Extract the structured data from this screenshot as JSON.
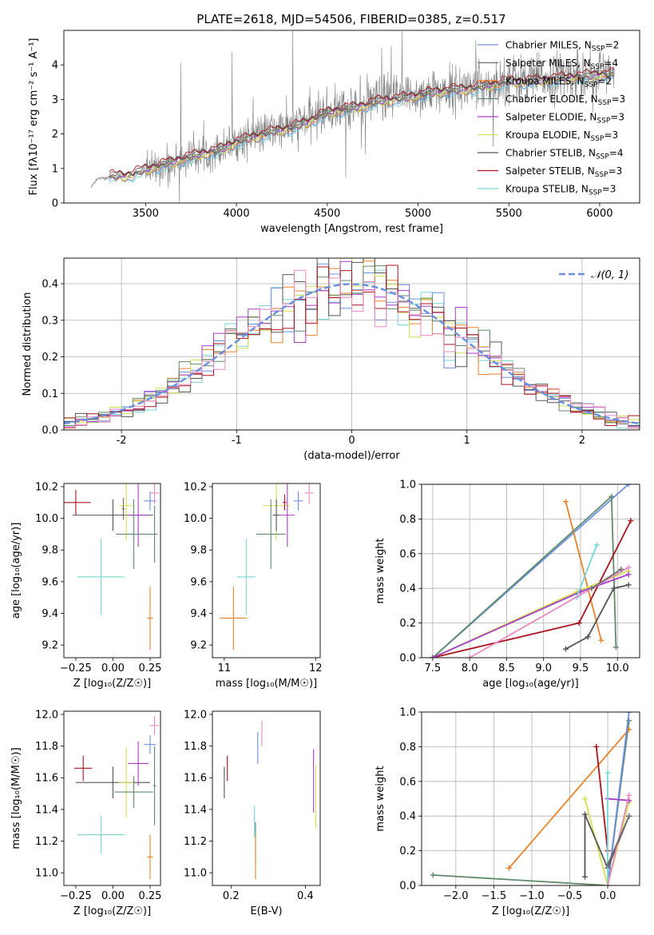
{
  "figure_title": "PLATE=2618, MJD=54506, FIBERID=0385, z=0.517",
  "colors": {
    "Chabrier MILES": "#6a8fe0",
    "Salpeter MILES": "#6e6e6e",
    "Kroupa MILES": "#e8822a",
    "Chabrier ELODIE": "#5f8a6a",
    "Salpeter ELODIE": "#a63ec7",
    "Kroupa ELODIE": "#d4df54",
    "Chabrier STELIB": "#555555",
    "Salpeter STELIB": "#a8141e",
    "Kroupa STELIB": "#78d5d7",
    "data": "#808080",
    "extra": "#e88bc2"
  },
  "chart_data": [
    {
      "id": "spectrum",
      "type": "line",
      "title": "PLATE=2618, MJD=54506, FIBERID=0385, z=0.517",
      "xlabel": "wavelength [Angstrom, rest frame]",
      "ylabel": "Flux [fλ10⁻¹⁷ erg cm⁻² s⁻¹ A⁻¹]",
      "xlim": [
        3050,
        6220
      ],
      "ylim": [
        0,
        5
      ],
      "xticks": [
        3500,
        4000,
        4500,
        5000,
        5500,
        6000
      ],
      "yticks": [
        0,
        1,
        2,
        3,
        4
      ],
      "legend_position": "top-right",
      "legend": [
        {
          "label": "Chabrier MILES, N",
          "sub": "SSP",
          "n": "=2",
          "color_key": "Chabrier MILES"
        },
        {
          "label": "Salpeter MILES, N",
          "sub": "SSP",
          "n": "=4",
          "color_key": "Salpeter MILES"
        },
        {
          "label": "Kroupa MILES, N",
          "sub": "SSP",
          "n": "=2",
          "color_key": "Kroupa MILES"
        },
        {
          "label": "Chabrier ELODIE, N",
          "sub": "SSP",
          "n": "=3",
          "color_key": "Chabrier ELODIE"
        },
        {
          "label": "Salpeter ELODIE, N",
          "sub": "SSP",
          "n": "=3",
          "color_key": "Salpeter ELODIE"
        },
        {
          "label": "Kroupa ELODIE, N",
          "sub": "SSP",
          "n": "=3",
          "color_key": "Kroupa ELODIE"
        },
        {
          "label": "Chabrier STELIB, N",
          "sub": "SSP",
          "n": "=4",
          "color_key": "Chabrier STELIB"
        },
        {
          "label": "Salpeter STELIB, N",
          "sub": "SSP",
          "n": "=3",
          "color_key": "Salpeter STELIB"
        },
        {
          "label": "Kroupa STELIB, N",
          "sub": "SSP",
          "n": "=3",
          "color_key": "Kroupa STELIB"
        }
      ],
      "data_continuum": [
        [
          3200,
          0.45
        ],
        [
          3230,
          0.7
        ],
        [
          3300,
          0.75
        ],
        [
          3400,
          0.78
        ],
        [
          3500,
          0.9
        ],
        [
          3600,
          1.1
        ],
        [
          3700,
          1.25
        ],
        [
          3800,
          1.4
        ],
        [
          3900,
          1.55
        ],
        [
          4000,
          1.8
        ],
        [
          4100,
          1.95
        ],
        [
          4200,
          2.1
        ],
        [
          4300,
          2.2
        ],
        [
          4400,
          2.45
        ],
        [
          4500,
          2.65
        ],
        [
          4600,
          2.75
        ],
        [
          4700,
          2.85
        ],
        [
          4800,
          3.05
        ],
        [
          4900,
          3.1
        ],
        [
          5000,
          3.15
        ],
        [
          5100,
          3.25
        ],
        [
          5200,
          3.3
        ],
        [
          5300,
          3.35
        ],
        [
          5400,
          3.45
        ],
        [
          5500,
          3.6
        ],
        [
          5600,
          3.55
        ],
        [
          5700,
          3.6
        ],
        [
          5800,
          3.7
        ],
        [
          5900,
          3.7
        ],
        [
          6000,
          3.75
        ],
        [
          6080,
          3.75
        ]
      ],
      "data_start": 3200,
      "noise_start": 3500,
      "data_end": 6080,
      "model_continuum": [
        [
          3300,
          0.75
        ],
        [
          3400,
          0.78
        ],
        [
          3500,
          0.95
        ],
        [
          3600,
          1.1
        ],
        [
          3700,
          1.25
        ],
        [
          3800,
          1.4
        ],
        [
          3900,
          1.5
        ],
        [
          4000,
          1.75
        ],
        [
          4100,
          1.9
        ],
        [
          4200,
          2.05
        ],
        [
          4300,
          2.15
        ],
        [
          4400,
          2.35
        ],
        [
          4500,
          2.6
        ],
        [
          4600,
          2.7
        ],
        [
          4700,
          2.8
        ],
        [
          4800,
          2.95
        ],
        [
          4900,
          3.0
        ],
        [
          5000,
          3.1
        ],
        [
          5100,
          3.2
        ],
        [
          5200,
          3.25
        ],
        [
          5300,
          3.3
        ],
        [
          5400,
          3.4
        ],
        [
          5500,
          3.5
        ],
        [
          5600,
          3.5
        ],
        [
          5700,
          3.55
        ],
        [
          5800,
          3.6
        ],
        [
          5900,
          3.65
        ],
        [
          6000,
          3.7
        ],
        [
          6080,
          3.7
        ]
      ]
    },
    {
      "id": "residuals",
      "type": "histogram",
      "xlabel": "(data-model)/error",
      "ylabel": "Normed distribution",
      "xlim": [
        -2.5,
        2.5
      ],
      "ylim": [
        0,
        0.47
      ],
      "xticks": [
        -2,
        -1,
        0,
        1,
        2
      ],
      "yticks": [
        0.0,
        0.1,
        0.2,
        0.3,
        0.4
      ],
      "grid": true,
      "legend_position": "top-right",
      "legend_label": "𝒩(0, 1)",
      "gaussian": {
        "mean": 0,
        "sigma": 1
      },
      "bin_width": 0.1
    },
    {
      "id": "age-vs-Z",
      "type": "errorbar",
      "xlabel": "Z [log₁₀(Z/Z☉)]",
      "ylabel": "age  [log₁₀(age/yr)]",
      "xlim": [
        -0.33,
        0.32
      ],
      "ylim": [
        9.12,
        10.22
      ],
      "xticks": [
        -0.25,
        0.0,
        0.25
      ],
      "xticklabels": [
        "−0.25",
        "0.00",
        "0.25"
      ],
      "yticks": [
        9.2,
        9.4,
        9.6,
        9.8,
        10.0,
        10.2
      ],
      "points": [
        {
          "c": "Salpeter STELIB",
          "x": -0.25,
          "xe": 0.1,
          "y": 10.1,
          "ye": 0.08
        },
        {
          "c": "Chabrier STELIB",
          "x": 0.0,
          "xe": 0.27,
          "y": 10.02,
          "ye": 0.1
        },
        {
          "c": "Kroupa STELIB",
          "x": -0.08,
          "xe": 0.16,
          "y": 9.63,
          "ye": 0.24
        },
        {
          "c": "Kroupa MILES",
          "x": 0.25,
          "xe": 0.02,
          "y": 9.37,
          "ye": 0.2
        },
        {
          "c": "Kroupa ELODIE",
          "x": 0.09,
          "xe": 0.05,
          "y": 10.08,
          "ye": 0.22
        },
        {
          "c": "Salpeter ELODIE",
          "x": 0.17,
          "xe": 0.07,
          "y": 10.02,
          "ye": 0.2
        },
        {
          "c": "Chabrier ELODIE",
          "x": 0.14,
          "xe": 0.12,
          "y": 9.9,
          "ye": 0.22
        },
        {
          "c": "Chabrier MILES",
          "x": 0.25,
          "xe": 0.04,
          "y": 10.11,
          "ye": 0.06
        },
        {
          "c": "extra",
          "x": 0.28,
          "xe": 0.03,
          "y": 10.16,
          "ye": 0.07
        },
        {
          "c": "Salpeter MILES",
          "x": 0.07,
          "xe": 0.01,
          "y": 10.06,
          "ye": 0.07
        },
        {
          "c": "Chabrier ELODIE",
          "x": 0.28,
          "xe": 0.02,
          "y": 9.9,
          "ye": 0.18
        }
      ]
    },
    {
      "id": "age-vs-mass",
      "type": "errorbar",
      "xlabel": "mass [log₁₀(M/M☉)]",
      "ylabel": "",
      "xlim": [
        10.87,
        12.05
      ],
      "ylim": [
        9.12,
        10.22
      ],
      "xticks": [
        11,
        12
      ],
      "xticklabels": [
        "11",
        "12"
      ],
      "yticks": [
        9.2,
        9.4,
        9.6,
        9.8,
        10.0,
        10.2
      ],
      "points": [
        {
          "c": "Kroupa MILES",
          "x": 11.1,
          "xe": 0.15,
          "y": 9.37,
          "ye": 0.2
        },
        {
          "c": "Kroupa STELIB",
          "x": 11.24,
          "xe": 0.1,
          "y": 9.63,
          "ye": 0.24
        },
        {
          "c": "Kroupa ELODIE",
          "x": 11.57,
          "xe": 0.15,
          "y": 10.08,
          "ye": 0.22
        },
        {
          "c": "Chabrier ELODIE",
          "x": 11.51,
          "xe": 0.16,
          "y": 9.9,
          "ye": 0.22
        },
        {
          "c": "Salpeter ELODIE",
          "x": 11.69,
          "xe": 0.08,
          "y": 10.02,
          "ye": 0.2
        },
        {
          "c": "Chabrier STELIB",
          "x": 11.57,
          "xe": 0.04,
          "y": 10.02,
          "ye": 0.1
        },
        {
          "c": "Chabrier MILES",
          "x": 11.81,
          "xe": 0.05,
          "y": 10.11,
          "ye": 0.06
        },
        {
          "c": "extra",
          "x": 11.93,
          "xe": 0.05,
          "y": 10.16,
          "ye": 0.07
        },
        {
          "c": "Salpeter STELIB",
          "x": 11.66,
          "xe": 0.02,
          "y": 10.1,
          "ye": 0.05
        }
      ]
    },
    {
      "id": "massweight-vs-age",
      "type": "line",
      "xlabel": "age  [log₁₀(age/yr)]",
      "ylabel": "mass weight",
      "xlim": [
        7.35,
        10.3
      ],
      "ylim": [
        0,
        1
      ],
      "xticks": [
        7.5,
        8.0,
        8.5,
        9.0,
        9.5,
        10.0
      ],
      "xticklabels": [
        "7.5",
        "8.0",
        "8.5",
        "9.0",
        "9.5",
        "10.0"
      ],
      "yticks": [
        0.0,
        0.2,
        0.4,
        0.6,
        0.8,
        1.0
      ],
      "grid": true,
      "series": [
        {
          "c": "Chabrier MILES",
          "points": [
            [
              7.5,
              0.0
            ],
            [
              10.15,
              1.0
            ]
          ]
        },
        {
          "c": "Kroupa MILES",
          "points": [
            [
              9.3,
              0.9
            ],
            [
              9.78,
              0.1
            ]
          ]
        },
        {
          "c": "Chabrier ELODIE",
          "points": [
            [
              7.5,
              0.0
            ],
            [
              9.92,
              0.93
            ],
            [
              9.98,
              0.06
            ]
          ]
        },
        {
          "c": "Salpeter STELIB",
          "points": [
            [
              7.5,
              0.0
            ],
            [
              9.48,
              0.2
            ],
            [
              10.18,
              0.79
            ]
          ]
        },
        {
          "c": "Kroupa ELODIE",
          "points": [
            [
              7.5,
              0.0
            ],
            [
              9.45,
              0.38
            ],
            [
              10.15,
              0.5
            ]
          ]
        },
        {
          "c": "Chabrier STELIB",
          "points": [
            [
              9.3,
              0.05
            ],
            [
              9.6,
              0.12
            ],
            [
              9.95,
              0.4
            ],
            [
              10.15,
              0.42
            ]
          ]
        },
        {
          "c": "Salpeter ELODIE",
          "points": [
            [
              7.5,
              0.0
            ],
            [
              9.5,
              0.38
            ],
            [
              10.15,
              0.48
            ]
          ]
        },
        {
          "c": "Kroupa STELIB",
          "points": [
            [
              9.45,
              0.35
            ],
            [
              9.72,
              0.65
            ]
          ]
        },
        {
          "c": "extra",
          "points": [
            [
              8.0,
              0.0
            ],
            [
              10.15,
              0.52
            ]
          ]
        },
        {
          "c": "Salpeter MILES",
          "points": [
            [
              9.65,
              0.4
            ],
            [
              10.05,
              0.51
            ]
          ]
        }
      ]
    },
    {
      "id": "mass-vs-Z",
      "type": "errorbar",
      "xlabel": "Z [log₁₀(Z/Z☉)]",
      "ylabel": "mass [log₁₀(M/M☉)]",
      "xlim": [
        -0.33,
        0.32
      ],
      "ylim": [
        10.92,
        12.02
      ],
      "xticks": [
        -0.25,
        0.0,
        0.25
      ],
      "xticklabels": [
        "−0.25",
        "0.00",
        "0.25"
      ],
      "yticks": [
        11.0,
        11.2,
        11.4,
        11.6,
        11.8,
        12.0
      ],
      "points": [
        {
          "c": "Salpeter STELIB",
          "x": -0.2,
          "xe": 0.06,
          "y": 11.66,
          "ye": 0.08
        },
        {
          "c": "Chabrier STELIB",
          "x": 0.0,
          "xe": 0.25,
          "y": 11.57,
          "ye": 0.1
        },
        {
          "c": "Kroupa STELIB",
          "x": -0.08,
          "xe": 0.16,
          "y": 11.24,
          "ye": 0.12
        },
        {
          "c": "Kroupa MILES",
          "x": 0.25,
          "xe": 0.02,
          "y": 11.1,
          "ye": 0.14
        },
        {
          "c": "Kroupa ELODIE",
          "x": 0.09,
          "xe": 0.05,
          "y": 11.57,
          "ye": 0.22
        },
        {
          "c": "Salpeter ELODIE",
          "x": 0.17,
          "xe": 0.07,
          "y": 11.69,
          "ye": 0.14
        },
        {
          "c": "Chabrier ELODIE",
          "x": 0.14,
          "xe": 0.13,
          "y": 11.51,
          "ye": 0.1
        },
        {
          "c": "Chabrier MILES",
          "x": 0.25,
          "xe": 0.04,
          "y": 11.81,
          "ye": 0.06
        },
        {
          "c": "extra",
          "x": 0.28,
          "xe": 0.03,
          "y": 11.93,
          "ye": 0.06
        },
        {
          "c": "Chabrier ELODIE",
          "x": 0.28,
          "xe": 0.01,
          "y": 11.55,
          "ye": 0.25
        }
      ]
    },
    {
      "id": "mass-vs-EBV",
      "type": "errorbar",
      "xlabel": "E(B-V)",
      "ylabel": "",
      "xlim": [
        0.15,
        0.44
      ],
      "ylim": [
        10.92,
        12.02
      ],
      "xticks": [
        0.2,
        0.4
      ],
      "xticklabels": [
        "0.2",
        "0.4"
      ],
      "yticks": [
        11.0,
        11.2,
        11.4,
        11.6,
        11.8,
        12.0
      ],
      "points": [
        {
          "c": "Chabrier STELIB",
          "x": 0.182,
          "xe": 0.0,
          "y": 11.57,
          "ye": 0.1
        },
        {
          "c": "Salpeter STELIB",
          "x": 0.19,
          "xe": 0.0,
          "y": 11.66,
          "ye": 0.08
        },
        {
          "c": "Kroupa STELIB",
          "x": 0.263,
          "xe": 0.0,
          "y": 11.32,
          "ye": 0.1
        },
        {
          "c": "Chabrier ELODIE",
          "x": 0.266,
          "xe": 0.0,
          "y": 11.2,
          "ye": 0.12
        },
        {
          "c": "Kroupa MILES",
          "x": 0.266,
          "xe": 0.0,
          "y": 11.1,
          "ye": 0.14
        },
        {
          "c": "Chabrier MILES",
          "x": 0.272,
          "xe": 0.0,
          "y": 11.79,
          "ye": 0.1
        },
        {
          "c": "extra",
          "x": 0.283,
          "xe": 0.0,
          "y": 11.88,
          "ye": 0.08
        },
        {
          "c": "Salpeter ELODIE",
          "x": 0.422,
          "xe": 0.0,
          "y": 11.58,
          "ye": 0.2
        },
        {
          "c": "Kroupa ELODIE",
          "x": 0.428,
          "xe": 0.0,
          "y": 11.48,
          "ye": 0.2
        }
      ]
    },
    {
      "id": "massweight-vs-Z",
      "type": "line",
      "xlabel": "Z [log₁₀(Z/Z☉)]",
      "ylabel": "mass weight",
      "xlim": [
        -2.45,
        0.42
      ],
      "ylim": [
        0,
        1
      ],
      "xticks": [
        -2.0,
        -1.5,
        -1.0,
        -0.5,
        0.0
      ],
      "xticklabels": [
        "−2.0",
        "−1.5",
        "−1.0",
        "−0.5",
        "0.0"
      ],
      "yticks": [
        0.0,
        0.2,
        0.4,
        0.6,
        0.8,
        1.0
      ],
      "grid": true,
      "series": [
        {
          "c": "Chabrier ELODIE",
          "points": [
            [
              -2.3,
              0.06
            ],
            [
              0.0,
              0.0
            ],
            [
              0.28,
              0.95
            ]
          ]
        },
        {
          "c": "Kroupa MILES",
          "points": [
            [
              -1.3,
              0.1
            ],
            [
              0.28,
              0.9
            ]
          ]
        },
        {
          "c": "Chabrier MILES",
          "points": [
            [
              0.0,
              0.0
            ],
            [
              0.28,
              1.0
            ]
          ]
        },
        {
          "c": "Salpeter STELIB",
          "points": [
            [
              -0.15,
              0.8
            ],
            [
              0.0,
              0.2
            ]
          ]
        },
        {
          "c": "Kroupa ELODIE",
          "points": [
            [
              -0.3,
              0.5
            ],
            [
              0.0,
              0.0
            ],
            [
              0.28,
              0.48
            ]
          ]
        },
        {
          "c": "Chabrier STELIB",
          "points": [
            [
              -0.3,
              0.05
            ],
            [
              -0.3,
              0.41
            ],
            [
              0.0,
              0.1
            ],
            [
              0.28,
              0.4
            ]
          ]
        },
        {
          "c": "Salpeter ELODIE",
          "points": [
            [
              0.0,
              0.5
            ],
            [
              0.28,
              0.49
            ]
          ]
        },
        {
          "c": "Kroupa STELIB",
          "points": [
            [
              0.0,
              0.65
            ],
            [
              0.0,
              0.0
            ]
          ]
        },
        {
          "c": "extra",
          "points": [
            [
              0.0,
              0.0
            ],
            [
              0.28,
              0.52
            ]
          ]
        },
        {
          "c": "Salpeter MILES",
          "points": [
            [
              0.0,
              0.12
            ],
            [
              0.28,
              0.4
            ]
          ]
        }
      ]
    }
  ]
}
